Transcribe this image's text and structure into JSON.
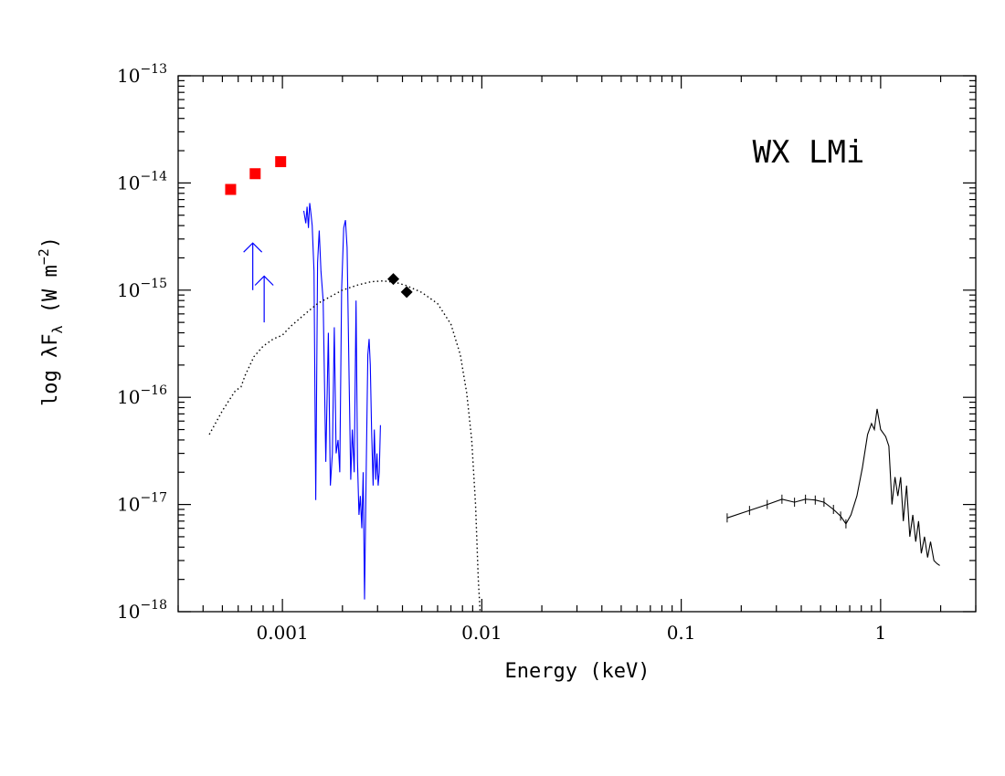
{
  "chart_data": {
    "type": "scatter",
    "title": "",
    "xlabel": "Energy (keV)",
    "ylabel_parts": {
      "pre": "log λF",
      "sub": "λ",
      "mid": " (W m",
      "sup": "−2",
      "post": ")"
    },
    "xscale": "log",
    "yscale": "log",
    "xlim": [
      0.0003,
      3
    ],
    "ylim": [
      1e-18,
      1e-13
    ],
    "x_tick_labels": [
      {
        "value": 0.001,
        "label": "0.001"
      },
      {
        "value": 0.01,
        "label": "0.01"
      },
      {
        "value": 0.1,
        "label": "0.1"
      },
      {
        "value": 1,
        "label": "1"
      }
    ],
    "y_tick_labels": [
      {
        "value": 1e-13,
        "base": "10",
        "exp": "−13"
      },
      {
        "value": 1e-14,
        "base": "10",
        "exp": "−14"
      },
      {
        "value": 1e-15,
        "base": "10",
        "exp": "−15"
      },
      {
        "value": 1e-16,
        "base": "10",
        "exp": "−16"
      },
      {
        "value": 1e-17,
        "base": "10",
        "exp": "−17"
      },
      {
        "value": 1e-18,
        "base": "10",
        "exp": "−18"
      }
    ],
    "annotation": "WX LMi",
    "grid": false,
    "series": [
      {
        "style": "red-squares",
        "color": "#ff0000",
        "points": [
          [
            0.00055,
            8.7e-15
          ],
          [
            0.00073,
            1.22e-14
          ],
          [
            0.00098,
            1.58e-14
          ]
        ]
      },
      {
        "style": "black-diamonds",
        "color": "#000000",
        "points": [
          [
            0.0036,
            1.27e-15
          ],
          [
            0.0042,
            9.6e-16
          ]
        ]
      },
      {
        "style": "blue-upper-limit-arrows",
        "color": "#0000ff",
        "points": [
          [
            0.00071,
            1e-15
          ],
          [
            0.00081,
            5e-16
          ]
        ],
        "arrow_top": [
          2.75e-15,
          1.35e-15
        ]
      },
      {
        "style": "blue-spectrum",
        "color": "#0000ff",
        "points": [
          [
            0.00128,
            5.5e-15
          ],
          [
            0.00131,
            4.2e-15
          ],
          [
            0.00133,
            6e-15
          ],
          [
            0.00135,
            3.8e-15
          ],
          [
            0.00137,
            6.5e-15
          ],
          [
            0.00139,
            5.2e-15
          ],
          [
            0.00141,
            4e-15
          ],
          [
            0.00144,
            1.5e-15
          ],
          [
            0.00147,
            1.1e-17
          ],
          [
            0.0015,
            1.8e-15
          ],
          [
            0.00153,
            3.6e-15
          ],
          [
            0.00156,
            1.5e-15
          ],
          [
            0.0016,
            8e-16
          ],
          [
            0.00165,
            2.5e-17
          ],
          [
            0.0017,
            4e-16
          ],
          [
            0.00174,
            1.5e-17
          ],
          [
            0.00178,
            3e-17
          ],
          [
            0.00182,
            4.5e-16
          ],
          [
            0.00186,
            3e-17
          ],
          [
            0.0019,
            4e-17
          ],
          [
            0.00194,
            2e-17
          ],
          [
            0.00198,
            1e-15
          ],
          [
            0.00203,
            3.8e-15
          ],
          [
            0.00207,
            4.5e-15
          ],
          [
            0.00211,
            2.5e-15
          ],
          [
            0.00216,
            1.5e-16
          ],
          [
            0.0022,
            1.7e-17
          ],
          [
            0.00224,
            5e-17
          ],
          [
            0.00229,
            2e-17
          ],
          [
            0.00234,
            8e-16
          ],
          [
            0.00238,
            2.5e-17
          ],
          [
            0.00242,
            8e-18
          ],
          [
            0.00246,
            1.2e-17
          ],
          [
            0.0025,
            6e-18
          ],
          [
            0.00254,
            2e-17
          ],
          [
            0.00258,
            1.3e-18
          ],
          [
            0.00263,
            2e-17
          ],
          [
            0.00268,
            2.5e-16
          ],
          [
            0.00272,
            3.5e-16
          ],
          [
            0.00276,
            2e-16
          ],
          [
            0.0028,
            5e-17
          ],
          [
            0.00285,
            1.5e-17
          ],
          [
            0.00289,
            5e-17
          ],
          [
            0.00294,
            1.7e-17
          ],
          [
            0.00298,
            3e-17
          ],
          [
            0.00302,
            1.5e-17
          ],
          [
            0.00306,
            2e-17
          ],
          [
            0.0031,
            5.5e-17
          ]
        ]
      },
      {
        "style": "black-dotted-model",
        "color": "#000000",
        "points": [
          [
            0.00043,
            4.5e-17
          ],
          [
            0.0005,
            7.5e-17
          ],
          [
            0.00058,
            1.15e-16
          ],
          [
            0.00062,
            1.25e-16
          ],
          [
            0.00065,
            1.6e-16
          ],
          [
            0.00072,
            2.4e-16
          ],
          [
            0.0008,
            3e-16
          ],
          [
            0.0009,
            3.5e-16
          ],
          [
            0.001,
            3.8e-16
          ],
          [
            0.0011,
            4.6e-16
          ],
          [
            0.0013,
            6e-16
          ],
          [
            0.0015,
            7.5e-16
          ],
          [
            0.0018,
            9e-16
          ],
          [
            0.002,
            1e-15
          ],
          [
            0.0024,
            1.12e-15
          ],
          [
            0.0028,
            1.2e-15
          ],
          [
            0.0032,
            1.22e-15
          ],
          [
            0.0037,
            1.18e-15
          ],
          [
            0.0042,
            1.1e-15
          ],
          [
            0.005,
            9.5e-16
          ],
          [
            0.006,
            7.5e-16
          ],
          [
            0.007,
            4.8e-16
          ],
          [
            0.0078,
            2.5e-16
          ],
          [
            0.0084,
            1.1e-16
          ],
          [
            0.0089,
            4e-17
          ],
          [
            0.0093,
            1e-17
          ],
          [
            0.0096,
            2e-18
          ],
          [
            0.0098,
            1e-18
          ]
        ]
      },
      {
        "style": "black-xray-spectrum",
        "color": "#000000",
        "points": [
          [
            0.17,
            7.5e-18
          ],
          [
            0.22,
            8.8e-18
          ],
          [
            0.27,
            1e-17
          ],
          [
            0.32,
            1.12e-17
          ],
          [
            0.37,
            1.05e-17
          ],
          [
            0.42,
            1.12e-17
          ],
          [
            0.47,
            1.1e-17
          ],
          [
            0.52,
            1.05e-17
          ],
          [
            0.58,
            9e-18
          ],
          [
            0.63,
            7.8e-18
          ],
          [
            0.67,
            6.6e-18
          ],
          [
            0.71,
            8e-18
          ],
          [
            0.76,
            1.2e-17
          ],
          [
            0.81,
            2.2e-17
          ],
          [
            0.86,
            4.5e-17
          ],
          [
            0.9,
            5.7e-17
          ],
          [
            0.93,
            5e-17
          ],
          [
            0.96,
            7.8e-17
          ],
          [
            1.0,
            5e-17
          ],
          [
            1.06,
            4.3e-17
          ],
          [
            1.1,
            3.5e-17
          ],
          [
            1.14,
            1e-17
          ],
          [
            1.18,
            1.8e-17
          ],
          [
            1.22,
            1.2e-17
          ],
          [
            1.26,
            1.8e-17
          ],
          [
            1.3,
            7e-18
          ],
          [
            1.35,
            1.5e-17
          ],
          [
            1.4,
            5e-18
          ],
          [
            1.45,
            8e-18
          ],
          [
            1.5,
            4.5e-18
          ],
          [
            1.55,
            7e-18
          ],
          [
            1.6,
            3.5e-18
          ],
          [
            1.66,
            5e-18
          ],
          [
            1.72,
            3.2e-18
          ],
          [
            1.78,
            4.5e-18
          ],
          [
            1.85,
            3e-18
          ],
          [
            1.92,
            2.8e-18
          ],
          [
            1.98,
            2.7e-18
          ]
        ]
      }
    ]
  }
}
